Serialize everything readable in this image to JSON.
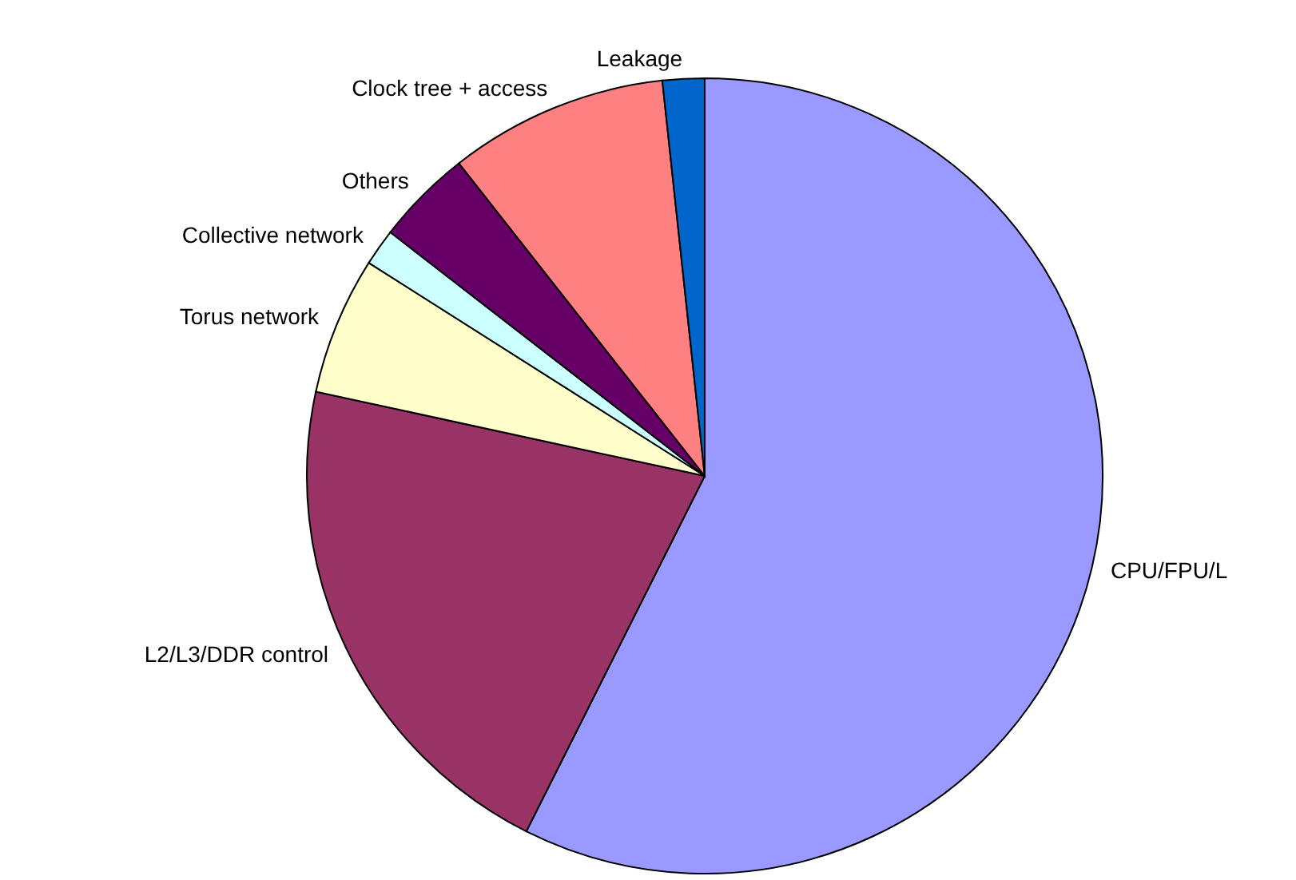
{
  "chart_data": {
    "type": "pie",
    "categories": [
      "CPU/FPU/L",
      "L2/L3/DDR control",
      "Torus network",
      "Collective network",
      "Others",
      "Clock tree + access",
      "Leakage"
    ],
    "values": [
      57.4,
      21.0,
      5.6,
      1.5,
      3.9,
      8.9,
      1.7
    ],
    "colors": [
      "#9999ff",
      "#993366",
      "#ffffcc",
      "#ccffff",
      "#660066",
      "#ff8080",
      "#0066cc"
    ]
  }
}
